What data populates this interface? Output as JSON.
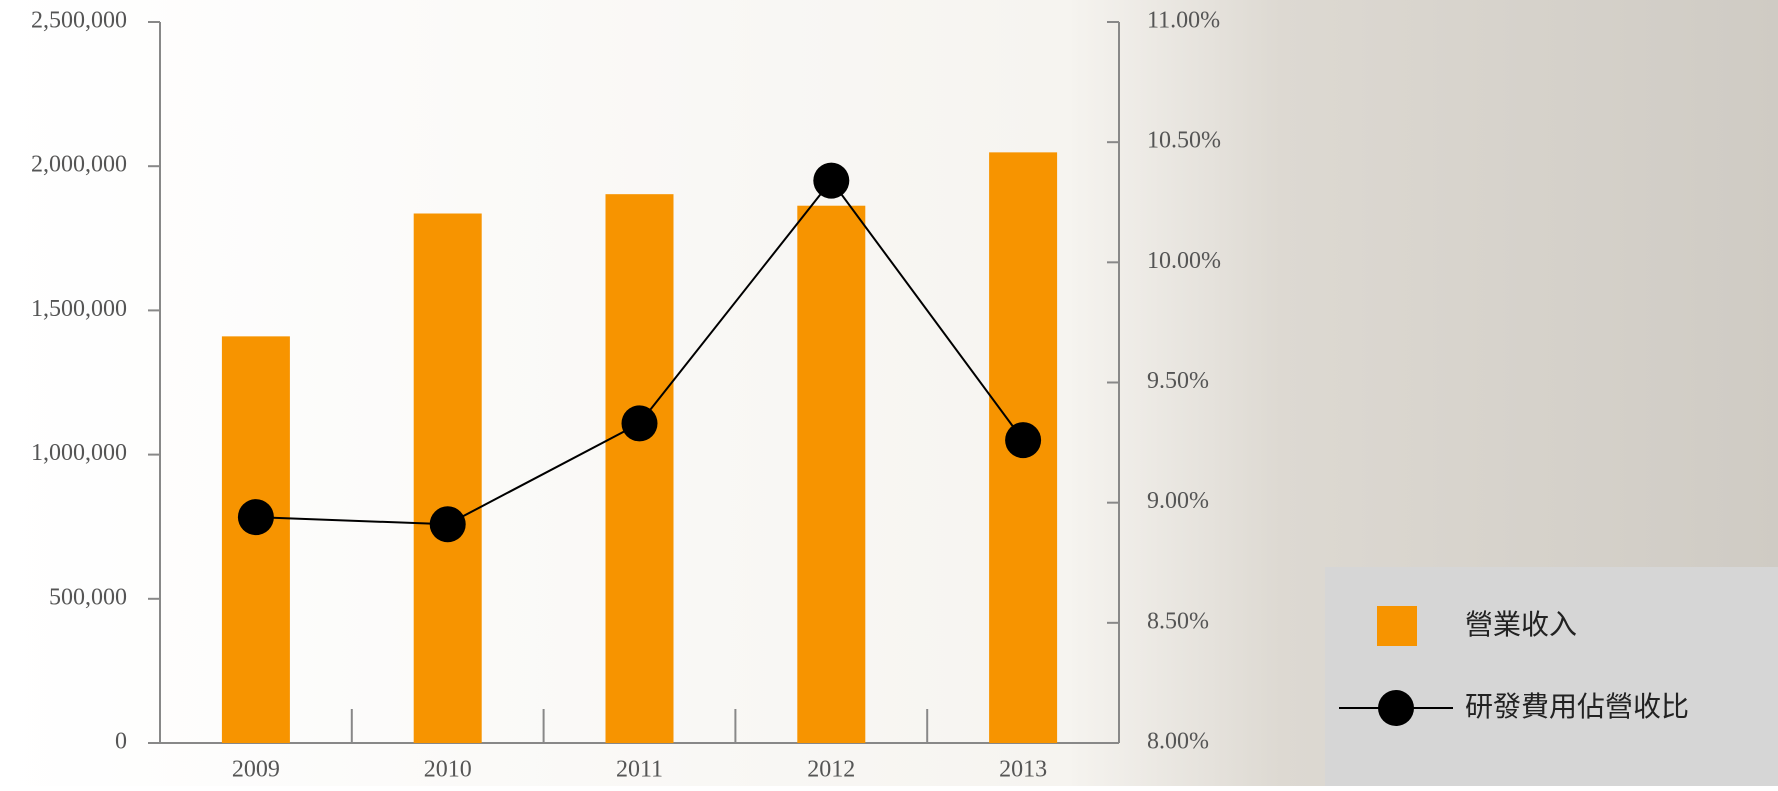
{
  "chart_data": {
    "type": "bar_line",
    "categories": [
      "2009",
      "2010",
      "2011",
      "2012",
      "2013"
    ],
    "series": [
      {
        "name": "營業收入",
        "type": "bar",
        "color": "#f79400",
        "values": [
          1410000,
          1836000,
          1903000,
          1863000,
          2048000
        ]
      },
      {
        "name": "研發費用佔營收比",
        "type": "line",
        "axis": "y2",
        "color": "#000000",
        "values": [
          8.94,
          8.91,
          9.33,
          10.34,
          9.26
        ]
      }
    ],
    "ylim": [
      0,
      2500000
    ],
    "yticks": [
      0,
      {
        "value": 500000,
        "label": "500,000"
      },
      {
        "value": 1000000,
        "label": "1,000,000"
      },
      {
        "value": 1500000,
        "label": "1,500,000"
      },
      {
        "value": 2000000,
        "label": "2,000,000"
      },
      {
        "value": 2500000,
        "label": "2,500,000"
      }
    ],
    "y2lim": [
      8,
      11
    ],
    "y2ticks": [
      {
        "value": 8,
        "label": "8.00%"
      },
      {
        "value": 8.5,
        "label": "8.50%"
      },
      {
        "value": 9,
        "label": "9.00%"
      },
      {
        "value": 9.5,
        "label": "9.50%"
      },
      {
        "value": 10,
        "label": "10.00%"
      },
      {
        "value": 10.5,
        "label": "10.50%"
      },
      {
        "value": 11,
        "label": "11.00%"
      }
    ],
    "legend": "bottom-right"
  }
}
